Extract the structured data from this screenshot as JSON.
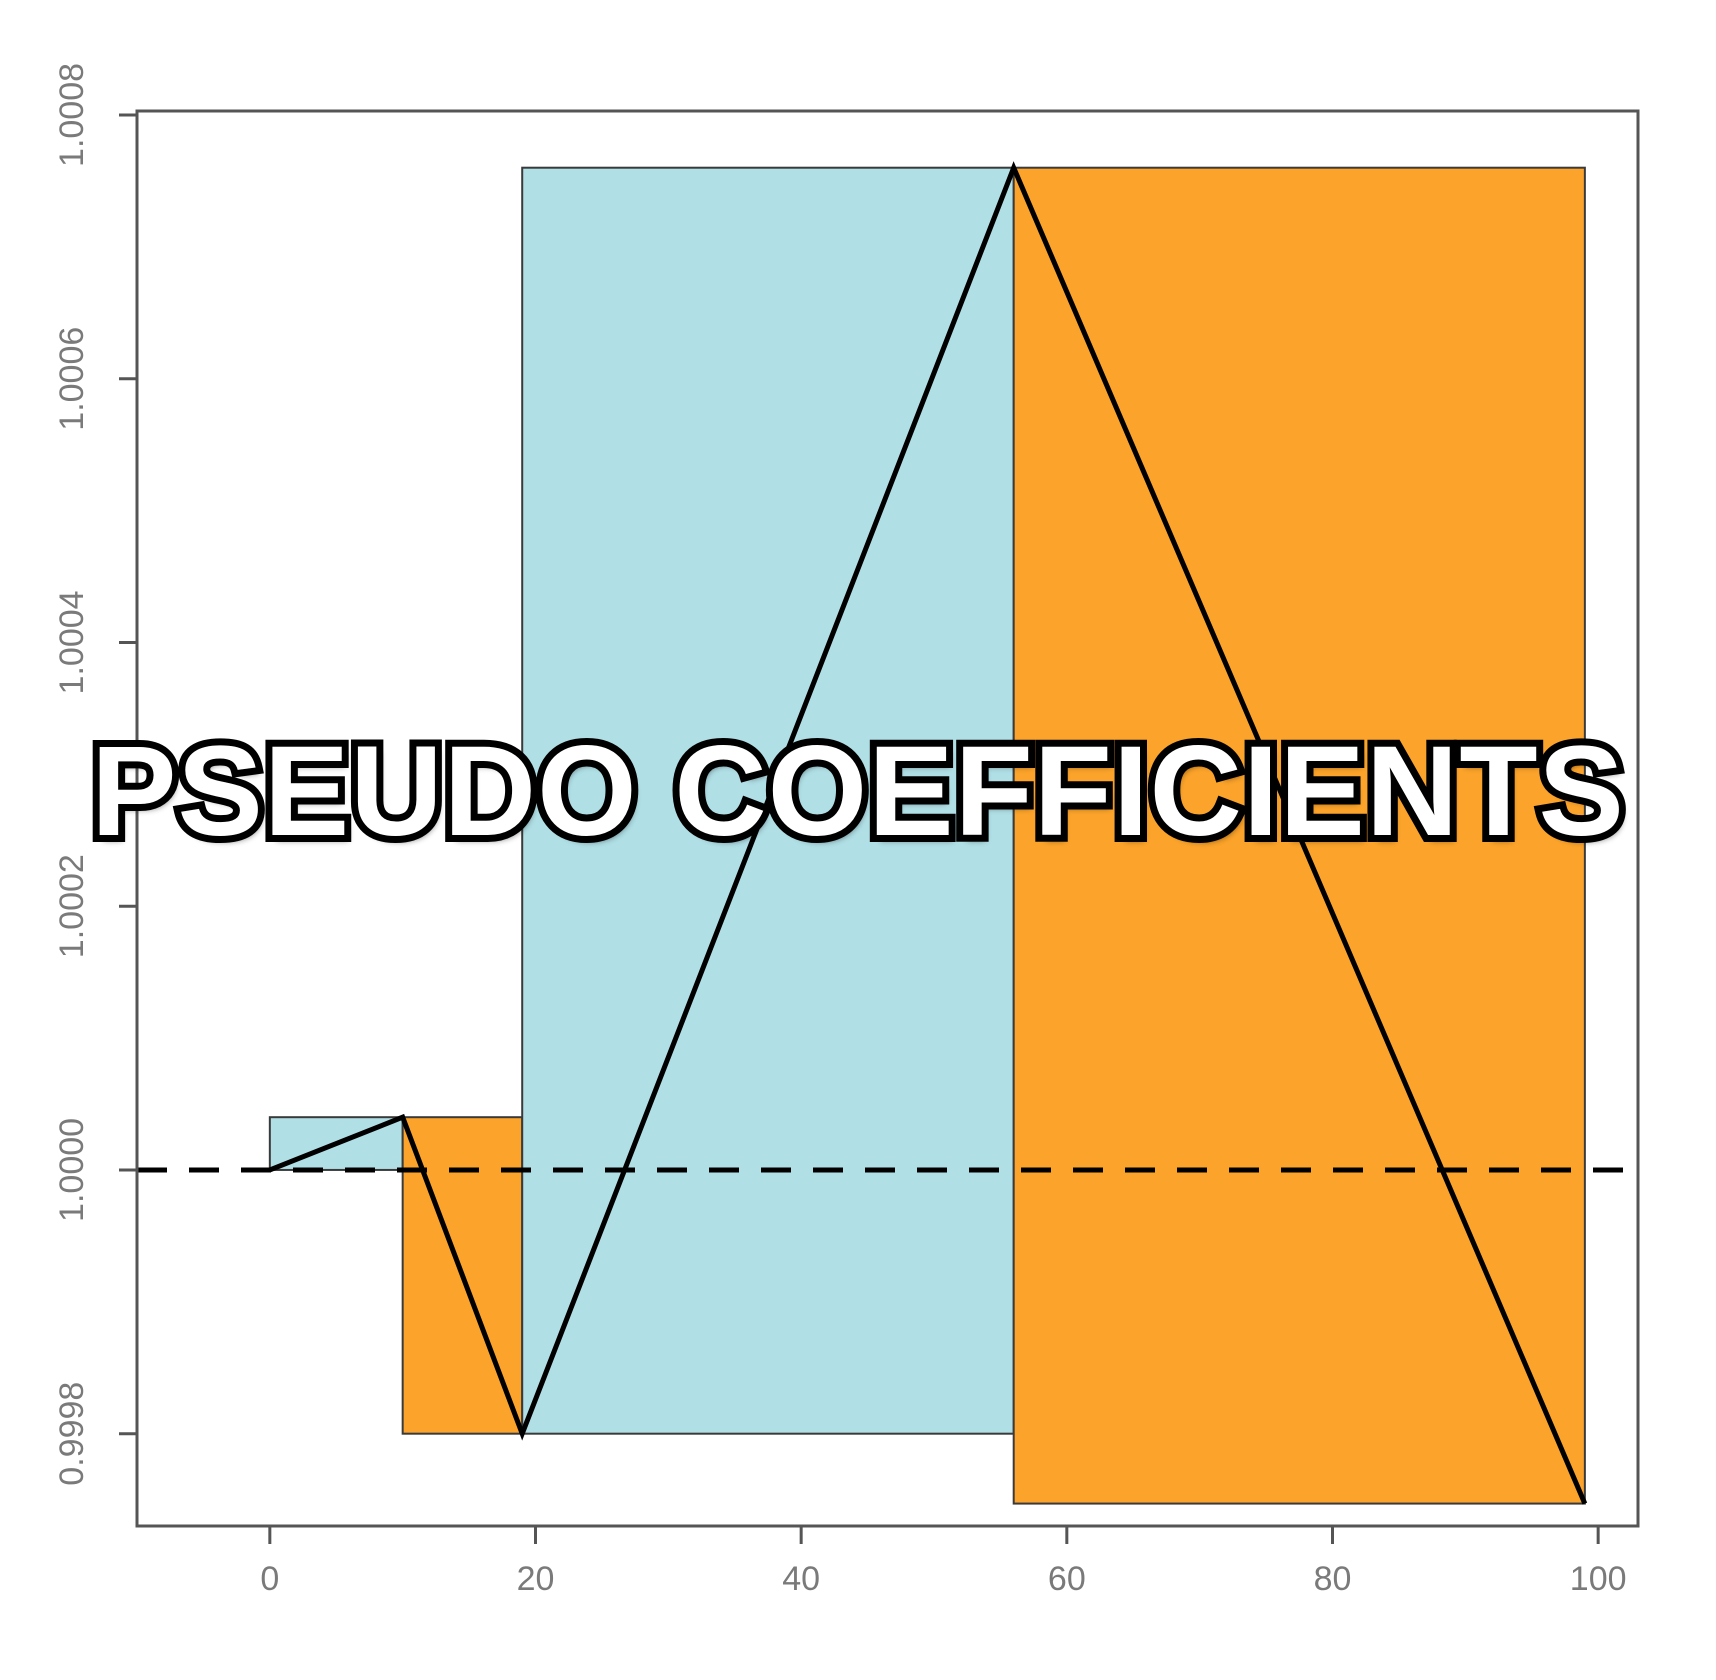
{
  "chart_data": {
    "type": "area",
    "title": "",
    "xlabel": "",
    "ylabel": "",
    "xlim": [
      -10,
      103
    ],
    "ylim": [
      0.99973,
      1.000803
    ],
    "x_ticks": [
      0,
      20,
      40,
      60,
      80,
      100
    ],
    "y_ticks": [
      0.9998,
      1.0,
      1.0002,
      1.0004,
      1.0006,
      1.0008
    ],
    "x_tick_labels": [
      "0",
      "20",
      "40",
      "60",
      "80",
      "100"
    ],
    "y_tick_labels": [
      "0.9998",
      "1.0000",
      "1.0002",
      "1.0004",
      "1.0006",
      "1.0008"
    ],
    "reference_line": {
      "y": 1.0,
      "style": "dashed"
    },
    "rectangles": [
      {
        "x0": 0,
        "x1": 10,
        "y0": 1.0,
        "y1": 1.00004,
        "color": "#b0dfe6"
      },
      {
        "x0": 10,
        "x1": 19,
        "y0": 0.9998,
        "y1": 1.00004,
        "color": "#fba32a"
      },
      {
        "x0": 19,
        "x1": 56,
        "y0": 0.9998,
        "y1": 1.00076,
        "color": "#b0dfe6"
      },
      {
        "x0": 56,
        "x1": 99,
        "y0": 0.999747,
        "y1": 1.00076,
        "color": "#fba32a"
      }
    ],
    "line": {
      "x": [
        0,
        10,
        19,
        56,
        99
      ],
      "y": [
        1.0,
        1.00004,
        0.9998,
        1.00076,
        0.999747
      ]
    },
    "grid": false
  },
  "overlay": {
    "text": "PSEUDO COEFFICIENTS"
  },
  "colors": {
    "light_blue": "#b0dfe6",
    "orange": "#fba32a",
    "axis": "#555555",
    "line": "#000000"
  }
}
